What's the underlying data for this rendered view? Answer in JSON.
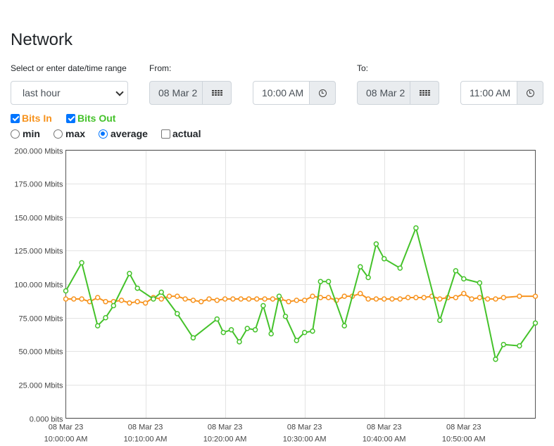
{
  "page": {
    "title": "Network"
  },
  "range": {
    "label": "Select or enter date/time range",
    "selected": "last hour",
    "from_label": "From:",
    "from_date": "08 Mar 2",
    "from_time": "10:00 AM",
    "to_label": "To:",
    "to_date": "08 Mar 2",
    "to_time": "11:00 AM"
  },
  "icons": {
    "date_button": "calendar-grid-icon",
    "time_button": "clock-icon"
  },
  "series_toggles": [
    {
      "label": "Bits In",
      "checked": true,
      "color": "#f7931e"
    },
    {
      "label": "Bits Out",
      "checked": true,
      "color": "#44c22a"
    }
  ],
  "modes": [
    {
      "label": "min",
      "type": "radio",
      "checked": false
    },
    {
      "label": "max",
      "type": "radio",
      "checked": false
    },
    {
      "label": "average",
      "type": "radio",
      "checked": true
    },
    {
      "label": "actual",
      "type": "checkbox",
      "checked": false
    }
  ],
  "chart_data": {
    "type": "line",
    "ylim": [
      0,
      200
    ],
    "y_ticks": [
      0,
      25,
      50,
      75,
      100,
      125,
      150,
      175,
      200
    ],
    "y_tick_labels": [
      "0.000 bits",
      "25.000 Mbits",
      "50.000 Mbits",
      "75.000 Mbits",
      "100.000 Mbits",
      "125.000 Mbits",
      "150.000 Mbits",
      "175.000 Mbits",
      "200.000 Mbits"
    ],
    "x_range": [
      0,
      59
    ],
    "x_ticks": [
      10,
      20,
      30,
      40,
      50
    ],
    "x_tick_labels": [
      [
        "08 Mar 23",
        "10:00:00 AM"
      ],
      [
        "08 Mar 23",
        "10:10:00 AM"
      ],
      [
        "08 Mar 23",
        "10:20:00 AM"
      ],
      [
        "08 Mar 23",
        "10:30:00 AM"
      ],
      [
        "08 Mar 23",
        "10:40:00 AM"
      ],
      [
        "08 Mar 23",
        "10:50:00 AM"
      ]
    ],
    "x_tick_positions": [
      0,
      10,
      20,
      30,
      40,
      50
    ],
    "grid": true,
    "series": [
      {
        "name": "Bits In",
        "color": "#f7931e",
        "x": [
          0,
          1,
          2,
          3,
          4,
          5,
          6,
          7,
          8,
          9,
          10,
          11,
          12,
          13,
          14,
          15,
          16,
          17,
          18,
          19,
          20,
          21,
          22,
          23,
          24,
          25,
          26,
          27,
          28,
          29,
          30,
          31,
          32,
          33,
          34,
          35,
          36,
          37,
          38,
          39,
          40,
          41,
          42,
          43,
          44,
          45,
          46,
          47,
          48,
          49,
          50,
          51,
          52,
          53,
          54,
          55,
          57,
          59
        ],
        "values": [
          89,
          89,
          89,
          87,
          90,
          87,
          87,
          88,
          86,
          87,
          86,
          90,
          89,
          91,
          91,
          89,
          88,
          87,
          89,
          88,
          89,
          89,
          89,
          89,
          89,
          89,
          89,
          89,
          87,
          88,
          88,
          91,
          90,
          90,
          88,
          91,
          91,
          93,
          89,
          89,
          89,
          89,
          89,
          90,
          90,
          90,
          91,
          89,
          90,
          90,
          93,
          89,
          90,
          89,
          89,
          90,
          91,
          91
        ]
      },
      {
        "name": "Bits Out",
        "color": "#44c22a",
        "x": [
          0,
          2,
          4,
          5,
          6,
          8,
          9,
          11,
          12,
          14,
          16,
          19,
          19.8,
          20.8,
          21.8,
          22.8,
          23.8,
          24.8,
          25.8,
          26.8,
          27.6,
          29,
          30,
          31,
          32,
          33,
          35,
          37,
          38,
          39,
          40,
          42,
          44,
          47,
          49,
          50,
          52,
          54,
          55,
          57,
          59
        ],
        "values": [
          95,
          116,
          69,
          75,
          84,
          108,
          97,
          89,
          94,
          78,
          60,
          74,
          64,
          66,
          57,
          67,
          66,
          84,
          63,
          91,
          76,
          58,
          64,
          65,
          102,
          102,
          69,
          113,
          105,
          130,
          119,
          112,
          142,
          73,
          110,
          104,
          101,
          44,
          55,
          54,
          71
        ]
      }
    ]
  }
}
